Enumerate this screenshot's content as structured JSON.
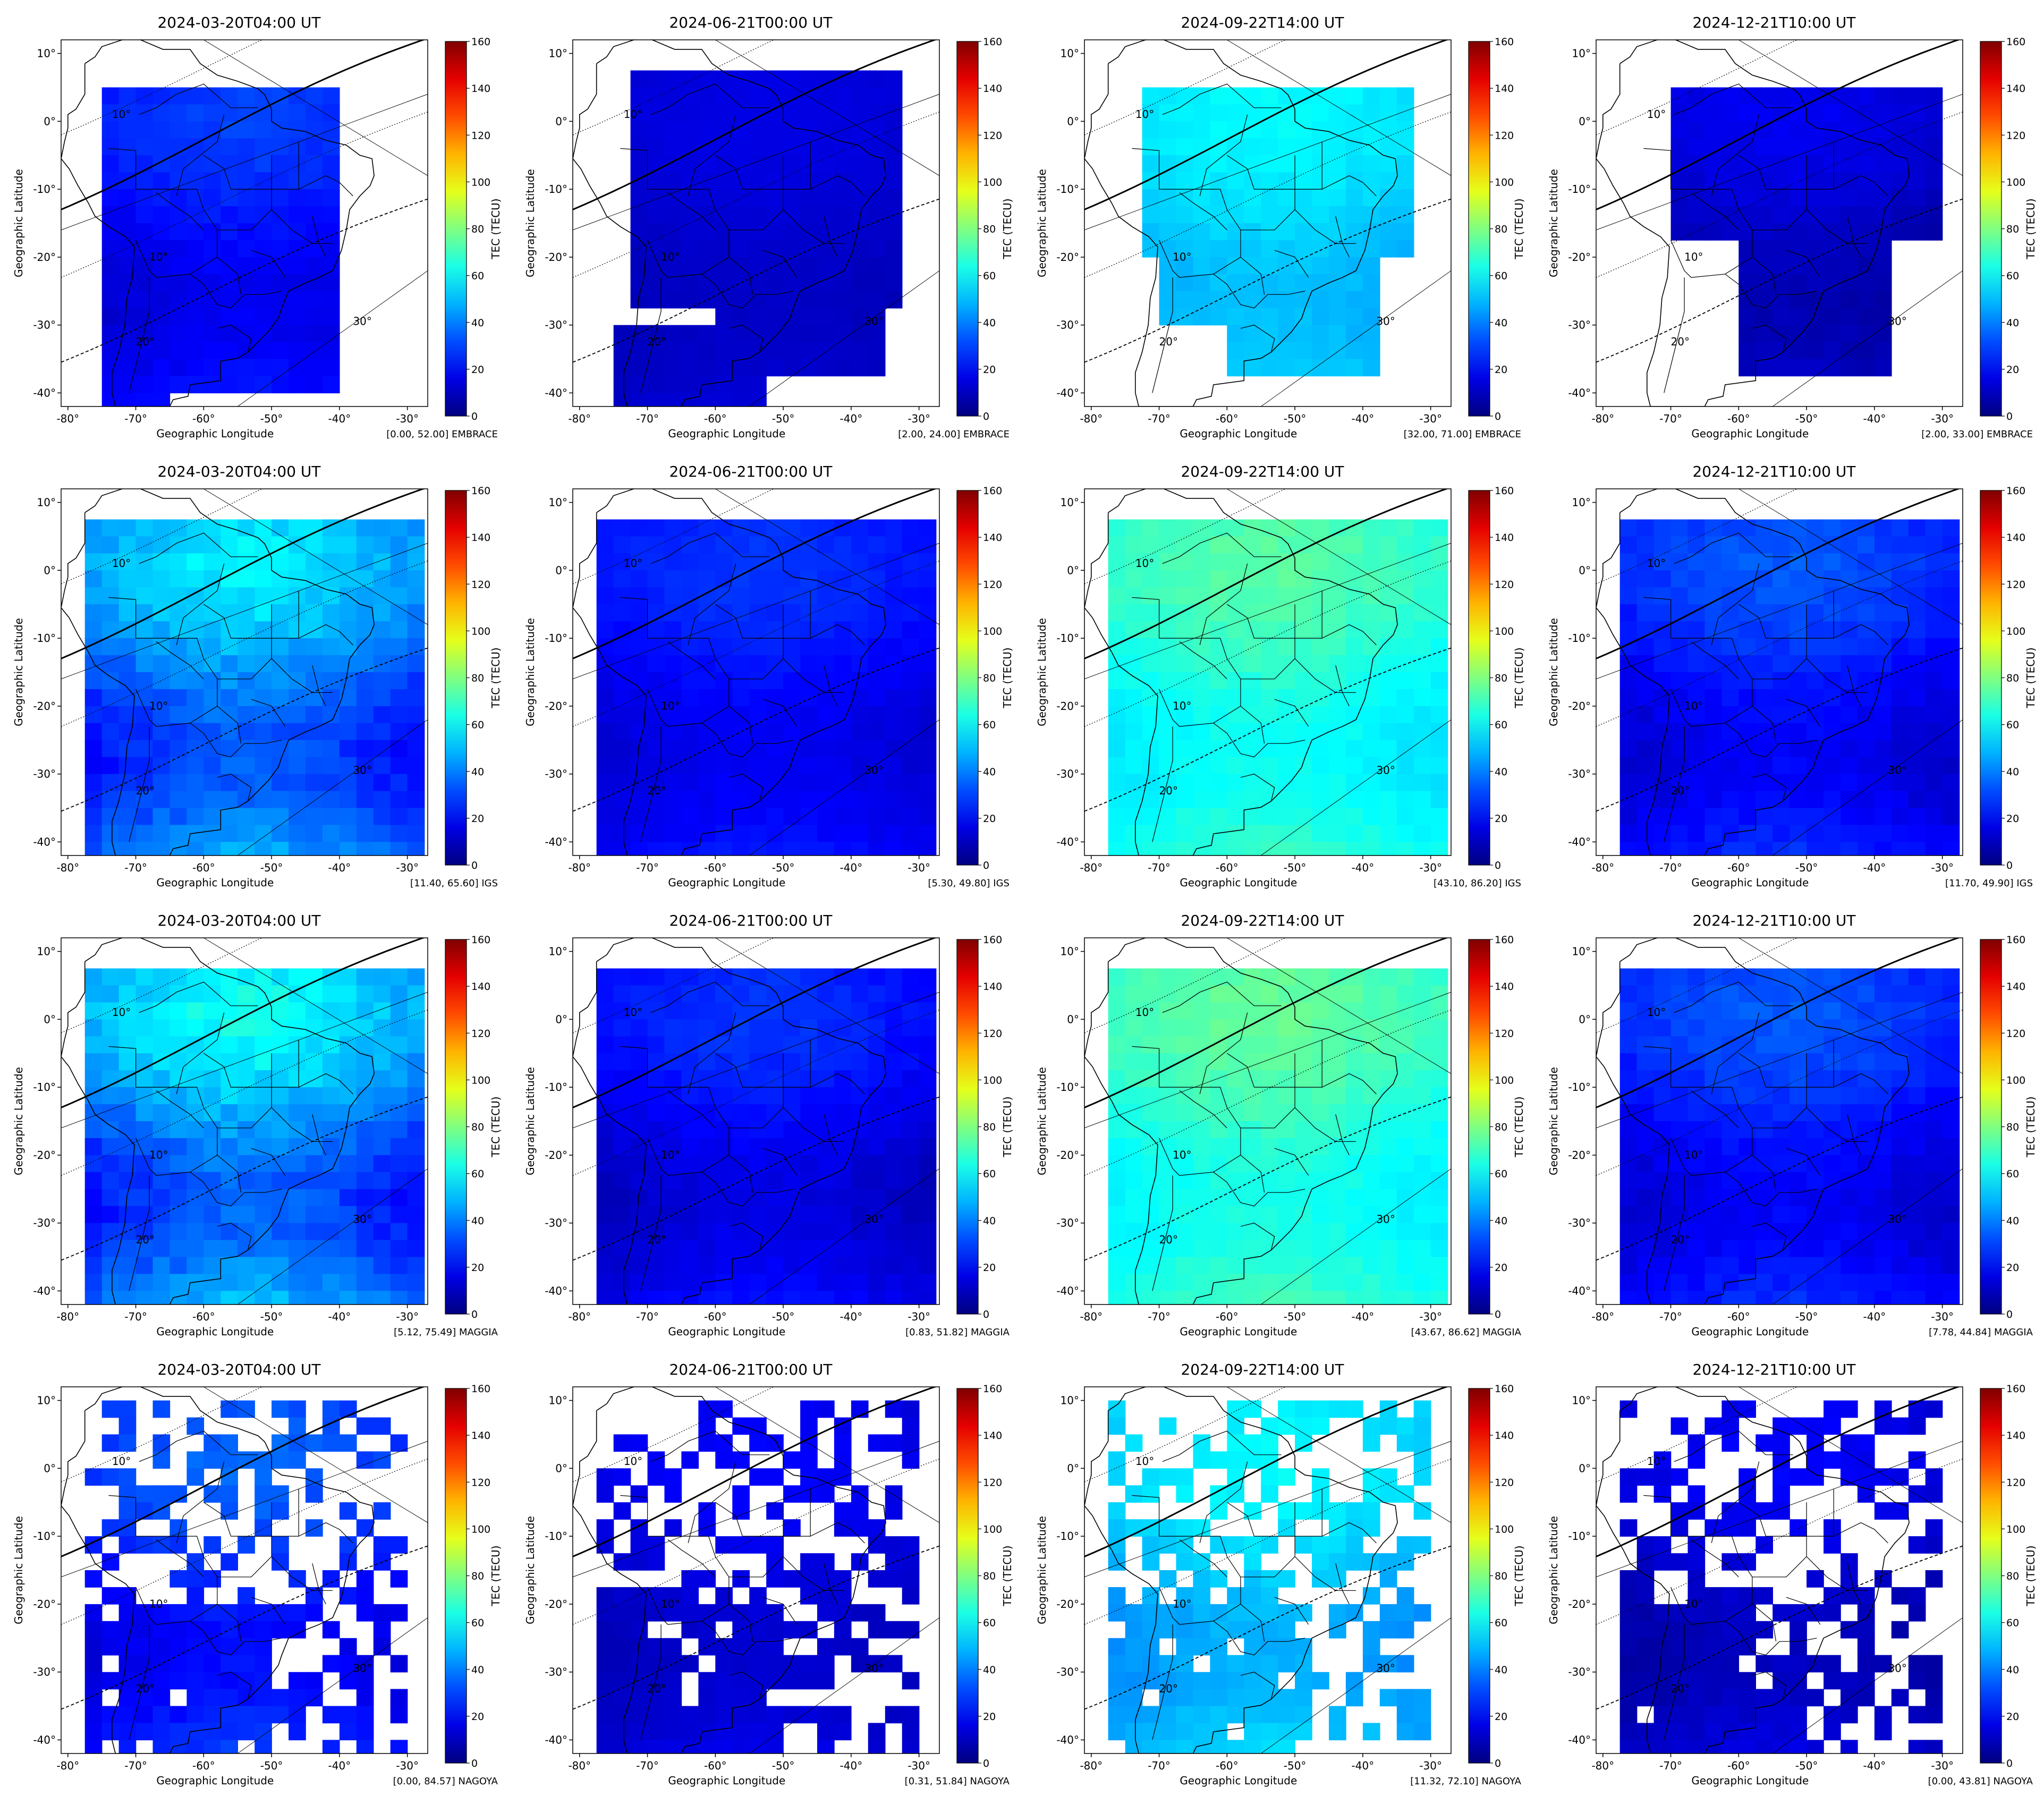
{
  "colorbar": {
    "label": "TEC (TECU)",
    "ticks": [
      "0",
      "20",
      "40",
      "60",
      "80",
      "100",
      "120",
      "140",
      "160"
    ],
    "min": 0,
    "max": 160,
    "colormap": "jet"
  },
  "axes": {
    "xlabel": "Geographic Longitude",
    "ylabel": "Geographic Latitude",
    "xticks": [
      "-80°",
      "-70°",
      "-60°",
      "-50°",
      "-40°",
      "-30°"
    ],
    "xtick_values": [
      -80,
      -70,
      -60,
      -50,
      -40,
      -30
    ],
    "yticks": [
      "10°",
      "0°",
      "-10°",
      "-20°",
      "-30°",
      "-40°"
    ],
    "ytick_values": [
      10,
      0,
      -10,
      -20,
      -30,
      -40
    ],
    "xlim": [
      -81,
      -27
    ],
    "ylim": [
      -42,
      12
    ]
  },
  "contour_labels": [
    "10°",
    "10°",
    "20°",
    "30°"
  ],
  "rows": [
    {
      "model": "EMBRACE",
      "panels": [
        {
          "title": "2024-03-20T04:00 UT",
          "range": "[0.00, 52.00] EMBRACE",
          "tec_mean": 20,
          "tec_var": 10,
          "shape": "blocky"
        },
        {
          "title": "2024-06-21T00:00 UT",
          "range": "[2.00, 24.00] EMBRACE",
          "tec_mean": 12,
          "tec_var": 4,
          "shape": "blocky"
        },
        {
          "title": "2024-09-22T14:00 UT",
          "range": "[32.00, 71.00] EMBRACE",
          "tec_mean": 52,
          "tec_var": 8,
          "shape": "blocky"
        },
        {
          "title": "2024-12-21T10:00 UT",
          "range": "[2.00, 33.00] EMBRACE",
          "tec_mean": 10,
          "tec_var": 8,
          "shape": "blocky"
        }
      ]
    },
    {
      "model": "IGS",
      "panels": [
        {
          "title": "2024-03-20T04:00 UT",
          "range": "[11.40, 65.60] IGS",
          "tec_mean": 38,
          "tec_var": 20,
          "shape": "full"
        },
        {
          "title": "2024-06-21T00:00 UT",
          "range": "[5.30, 49.80] IGS",
          "tec_mean": 20,
          "tec_var": 8,
          "shape": "full"
        },
        {
          "title": "2024-09-22T14:00 UT",
          "range": "[43.10, 86.20] IGS",
          "tec_mean": 64,
          "tec_var": 10,
          "shape": "full"
        },
        {
          "title": "2024-12-21T10:00 UT",
          "range": "[11.70, 49.90] IGS",
          "tec_mean": 22,
          "tec_var": 12,
          "shape": "full"
        }
      ]
    },
    {
      "model": "MAGGIA",
      "panels": [
        {
          "title": "2024-03-20T04:00 UT",
          "range": "[5.12, 75.49] MAGGIA",
          "tec_mean": 40,
          "tec_var": 22,
          "shape": "full"
        },
        {
          "title": "2024-06-21T00:00 UT",
          "range": "[0.83, 51.82] MAGGIA",
          "tec_mean": 18,
          "tec_var": 10,
          "shape": "full"
        },
        {
          "title": "2024-09-22T14:00 UT",
          "range": "[43.67, 86.62] MAGGIA",
          "tec_mean": 66,
          "tec_var": 10,
          "shape": "full"
        },
        {
          "title": "2024-12-21T10:00 UT",
          "range": "[7.78, 44.84] MAGGIA",
          "tec_mean": 22,
          "tec_var": 12,
          "shape": "full"
        }
      ]
    },
    {
      "model": "NAGOYA",
      "panels": [
        {
          "title": "2024-03-20T04:00 UT",
          "range": "[0.00, 84.57] NAGOYA",
          "tec_mean": 24,
          "tec_var": 12,
          "shape": "sparse"
        },
        {
          "title": "2024-06-21T00:00 UT",
          "range": "[0.31, 51.84] NAGOYA",
          "tec_mean": 14,
          "tec_var": 6,
          "shape": "sparse"
        },
        {
          "title": "2024-09-22T14:00 UT",
          "range": "[11.32, 72.10] NAGOYA",
          "tec_mean": 50,
          "tec_var": 10,
          "shape": "sparse"
        },
        {
          "title": "2024-12-21T10:00 UT",
          "range": "[0.00, 43.81] NAGOYA",
          "tec_mean": 12,
          "tec_var": 8,
          "shape": "sparse"
        }
      ]
    }
  ],
  "colors": {
    "coastline": "#000000",
    "equator": "#000000",
    "background": "#ffffff"
  }
}
